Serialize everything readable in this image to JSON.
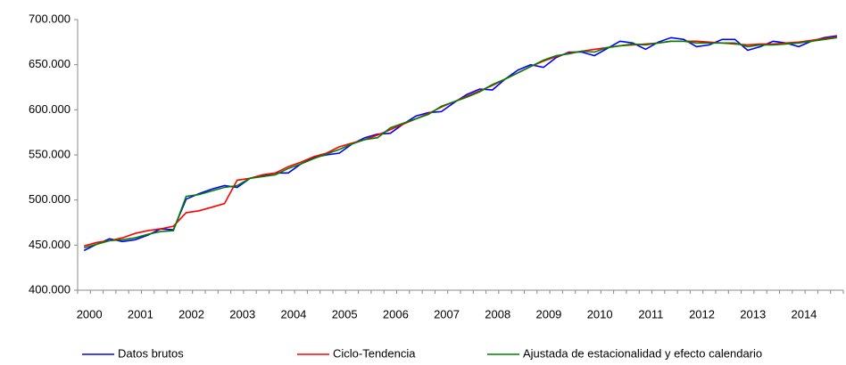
{
  "chart_data": {
    "type": "line",
    "categories": [
      "2000",
      null,
      null,
      null,
      "2001",
      null,
      null,
      null,
      "2002",
      null,
      null,
      null,
      "2003",
      null,
      null,
      null,
      "2004",
      null,
      null,
      null,
      "2005",
      null,
      null,
      null,
      "2006",
      null,
      null,
      null,
      "2007",
      null,
      null,
      null,
      "2008",
      null,
      null,
      null,
      "2009",
      null,
      null,
      null,
      "2010",
      null,
      null,
      null,
      "2011",
      null,
      null,
      null,
      "2012",
      null,
      null,
      null,
      "2013",
      null,
      null,
      null,
      "2014",
      null,
      null,
      null
    ],
    "series": [
      {
        "name": "Datos brutos",
        "color": "#0000ff",
        "values": [
          444000,
          451000,
          457000,
          454000,
          456000,
          461000,
          468000,
          467000,
          501000,
          507000,
          512000,
          516000,
          514000,
          524000,
          527000,
          530000,
          530000,
          540000,
          547000,
          550000,
          552000,
          562000,
          569000,
          573000,
          574000,
          584000,
          593000,
          597000,
          598000,
          608000,
          617000,
          623000,
          622000,
          634000,
          644000,
          650000,
          647000,
          658000,
          664000,
          664000,
          660000,
          668000,
          676000,
          674000,
          667000,
          675000,
          680000,
          678000,
          670000,
          672000,
          678000,
          678000,
          666000,
          670000,
          676000,
          674000,
          670000,
          676000,
          680000,
          682000
        ]
      },
      {
        "name": "Ciclo-Tendencia",
        "color": "#ff0000",
        "values": [
          449000,
          453000,
          455000,
          458000,
          463000,
          466000,
          468000,
          471000,
          486000,
          488000,
          492000,
          496000,
          522000,
          524000,
          528000,
          530000,
          537000,
          542000,
          548000,
          552000,
          559000,
          563000,
          567000,
          572000,
          578000,
          584000,
          590000,
          596000,
          603000,
          609000,
          615000,
          621000,
          627000,
          634000,
          641000,
          648000,
          654000,
          659000,
          663000,
          665000,
          667000,
          669000,
          671000,
          672000,
          673000,
          674000,
          676000,
          676000,
          676000,
          675000,
          674000,
          673000,
          672000,
          673000,
          673000,
          674000,
          675000,
          677000,
          679000,
          681000
        ]
      },
      {
        "name": "Ajustada de estacionalidad y efecto calendario",
        "color": "#008000",
        "values": [
          447000,
          451000,
          455000,
          456000,
          458000,
          462000,
          465000,
          466000,
          504000,
          506000,
          510000,
          514000,
          516000,
          524000,
          526000,
          528000,
          535000,
          540000,
          546000,
          551000,
          556000,
          562000,
          567000,
          569000,
          580000,
          585000,
          590000,
          595000,
          604000,
          609000,
          614000,
          620000,
          628000,
          634000,
          641000,
          648000,
          655000,
          660000,
          662000,
          665000,
          664000,
          669000,
          671000,
          673000,
          672000,
          674000,
          676000,
          676000,
          674000,
          674000,
          674000,
          674000,
          670000,
          672000,
          672000,
          673000,
          674000,
          676000,
          678000,
          680000
        ]
      }
    ],
    "ylim": [
      400000,
      700000
    ],
    "yticks": [
      {
        "value": 400000,
        "label": "400.000"
      },
      {
        "value": 450000,
        "label": "450.000"
      },
      {
        "value": 500000,
        "label": "500.000"
      },
      {
        "value": 550000,
        "label": "550.000"
      },
      {
        "value": 600000,
        "label": "600.000"
      },
      {
        "value": 650000,
        "label": "650.000"
      },
      {
        "value": 700000,
        "label": "700.000"
      }
    ],
    "grid": false,
    "legend": "bottom"
  }
}
